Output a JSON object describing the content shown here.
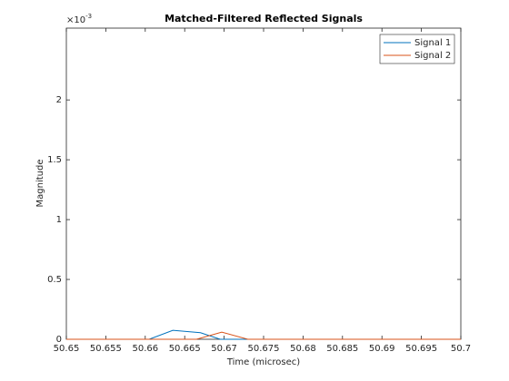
{
  "chart_data": {
    "type": "line",
    "title": "Matched-Filtered Reflected Signals",
    "x_label": "Time (microsec)",
    "y_label": "Magnitude",
    "y_multiplier": {
      "base": "×10",
      "exponent": "-3"
    },
    "xlim": [
      50.65,
      50.7
    ],
    "xticks": [
      50.65,
      50.655,
      50.66,
      50.665,
      50.67,
      50.675,
      50.68,
      50.685,
      50.69,
      50.695,
      50.7
    ],
    "ylim": [
      0,
      2.6
    ],
    "yticks": [
      0,
      0.5,
      1,
      1.5,
      2
    ],
    "legend": "upper-right",
    "series": [
      {
        "name": "Signal 1",
        "color": "#0072bd",
        "x": [
          50.65,
          50.6605,
          50.6635,
          50.667,
          50.6695,
          50.7
        ],
        "values": [
          0,
          0,
          0.075,
          0.055,
          0,
          0
        ]
      },
      {
        "name": "Signal 2",
        "color": "#d95319",
        "x": [
          50.65,
          50.6665,
          50.6697,
          50.673,
          50.7
        ],
        "values": [
          0,
          0,
          0.06,
          0,
          0
        ]
      }
    ]
  }
}
